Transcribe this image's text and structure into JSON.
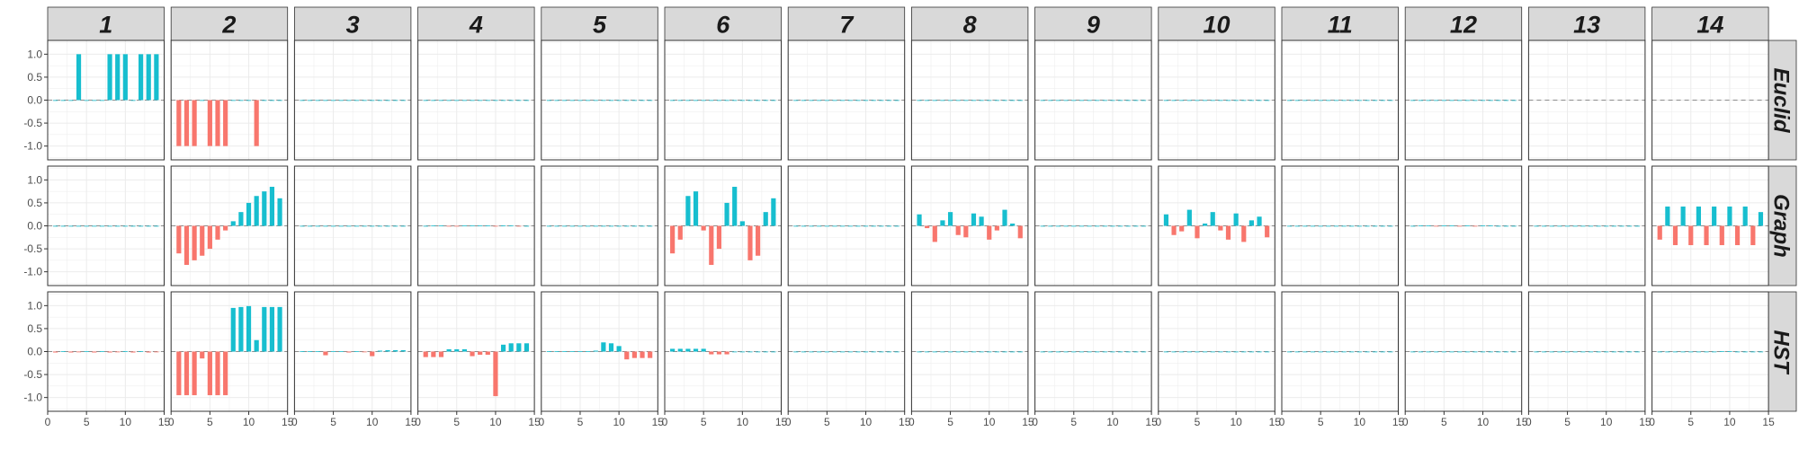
{
  "chart_data": {
    "type": "bar",
    "facet_columns": [
      "1",
      "2",
      "3",
      "4",
      "5",
      "6",
      "7",
      "8",
      "9",
      "10",
      "11",
      "12",
      "13",
      "14"
    ],
    "facet_rows": [
      "Euclid",
      "Graph",
      "HST"
    ],
    "x_ticks": [
      0,
      5,
      10,
      15
    ],
    "y_ticks": [
      -1.0,
      -0.5,
      0.0,
      0.5,
      1.0
    ],
    "x_tick_labels": [
      "0",
      "5",
      "10",
      "15"
    ],
    "y_tick_labels": [
      "-1.0",
      "-0.5",
      "0.0",
      "0.5",
      "1.0"
    ],
    "xlim": [
      0,
      15
    ],
    "ylim": [
      -1.3,
      1.3
    ],
    "grid": true,
    "colors": {
      "positive": "#17BECF",
      "negative": "#F8766D",
      "strip_fill": "#D9D9D9",
      "panel_border": "#333333",
      "grid": "#EBEBEB",
      "zero_line": "#8C8C8C"
    },
    "panels": {
      "Euclid": {
        "1": [
          0,
          0,
          0,
          1,
          0,
          0,
          0,
          1,
          1,
          1,
          0,
          1,
          1,
          1
        ],
        "2": [
          -1,
          -1,
          -1,
          0,
          -1,
          -1,
          -1,
          0,
          0,
          0,
          -1,
          0,
          0,
          0
        ],
        "3": [
          0,
          0,
          0,
          0,
          0,
          0,
          0,
          0,
          0,
          0,
          0,
          0,
          0,
          0
        ],
        "4": [
          0,
          0,
          0,
          0,
          0,
          0,
          0,
          0,
          0,
          0,
          0,
          0,
          0,
          0
        ],
        "5": [
          0,
          0,
          0,
          0,
          0,
          0,
          0,
          0,
          0,
          0,
          0,
          0,
          0,
          0
        ],
        "6": [
          0,
          0,
          0,
          0,
          0,
          0,
          0,
          0,
          0,
          0,
          0,
          0,
          0,
          0
        ],
        "7": [
          0,
          0,
          0,
          0,
          0,
          0,
          0,
          0,
          0,
          0,
          0,
          0,
          0,
          0
        ],
        "8": [
          0,
          0,
          0,
          0,
          0,
          0,
          0,
          0,
          0,
          0,
          0,
          0,
          0,
          0
        ],
        "9": [
          0,
          0,
          0,
          0,
          0,
          0,
          0,
          0,
          0,
          0,
          0,
          0,
          0,
          0
        ],
        "10": [
          0,
          0,
          0,
          0,
          0,
          0,
          0,
          0,
          0,
          0,
          0,
          0,
          0,
          0
        ],
        "11": [
          0,
          0,
          0,
          0,
          0,
          0,
          0,
          0,
          0,
          0,
          0,
          0,
          0,
          0
        ],
        "12": [
          0,
          0,
          0,
          0,
          0,
          0,
          0,
          0,
          0,
          0,
          0,
          0,
          0,
          0
        ],
        "13": [],
        "14": []
      },
      "Graph": {
        "1": [
          0,
          0,
          0,
          0,
          0,
          0,
          0,
          0,
          0,
          0,
          0,
          0,
          0,
          0
        ],
        "2": [
          -0.6,
          -0.85,
          -0.75,
          -0.65,
          -0.5,
          -0.3,
          -0.1,
          0.1,
          0.3,
          0.5,
          0.65,
          0.75,
          0.85,
          0.6
        ],
        "3": [
          0,
          0,
          0,
          0,
          0,
          0,
          0,
          0,
          0,
          0,
          0,
          0,
          0,
          0
        ],
        "4": [
          0,
          0.01,
          0.01,
          -0.01,
          -0.01,
          0.01,
          0.01,
          0.01,
          0.01,
          -0.01,
          0.01,
          0.01,
          -0.01,
          0
        ],
        "5": [
          0,
          0,
          0,
          0,
          0,
          0,
          0,
          0,
          0,
          0,
          0,
          0,
          0,
          0
        ],
        "6": [
          -0.6,
          -0.3,
          0.65,
          0.75,
          -0.1,
          -0.85,
          -0.5,
          0.5,
          0.85,
          0.1,
          -0.75,
          -0.65,
          0.3,
          0.6
        ],
        "7": [
          0,
          0,
          0,
          0,
          0,
          0,
          0,
          0,
          0,
          0,
          0,
          0,
          0,
          0
        ],
        "8": [
          0.25,
          -0.05,
          -0.35,
          0.12,
          0.3,
          -0.2,
          -0.25,
          0.27,
          0.2,
          -0.3,
          -0.1,
          0.35,
          0.05,
          -0.27
        ],
        "9": [
          0,
          0,
          0,
          0,
          0,
          0,
          0,
          0,
          0,
          0,
          0,
          0,
          0,
          0
        ],
        "10": [
          0.25,
          -0.2,
          -0.12,
          0.35,
          -0.27,
          0.05,
          0.3,
          -0.1,
          -0.3,
          0.27,
          -0.35,
          0.12,
          0.2,
          -0.25
        ],
        "11": [
          0,
          0,
          0,
          0,
          0,
          0,
          0,
          0,
          0,
          0,
          0,
          0,
          0,
          0
        ],
        "12": [
          0,
          0.01,
          0.01,
          -0.01,
          0.01,
          0.01,
          -0.01,
          0.01,
          -0.01,
          0.01,
          0.01,
          0,
          0,
          0
        ],
        "13": [
          0,
          0,
          0,
          0,
          0,
          0,
          0,
          0,
          0,
          0,
          0,
          0,
          0,
          0
        ],
        "14": [
          -0.3,
          0.42,
          -0.42,
          0.42,
          -0.42,
          0.42,
          -0.42,
          0.42,
          -0.42,
          0.42,
          -0.42,
          0.42,
          -0.42,
          0.3
        ]
      },
      "HST": {
        "1": [
          -0.02,
          0.01,
          -0.02,
          -0.01,
          0.01,
          -0.02,
          0.01,
          -0.02,
          -0.01,
          0.01,
          -0.02,
          0.01,
          -0.02,
          -0.01
        ],
        "2": [
          -0.95,
          -0.95,
          -0.95,
          -0.15,
          -0.95,
          -0.95,
          -0.95,
          0.95,
          0.97,
          0.99,
          0.25,
          0.97,
          0.97,
          0.97
        ],
        "3": [
          0.01,
          0.01,
          0.01,
          -0.08,
          0.01,
          0.01,
          -0.02,
          0.01,
          -0.01,
          -0.1,
          0.02,
          0.03,
          0.03,
          0.03
        ],
        "4": [
          -0.12,
          -0.12,
          -0.12,
          0.05,
          0.05,
          0.05,
          -0.1,
          -0.07,
          -0.07,
          -0.97,
          0.15,
          0.18,
          0.18,
          0.18
        ],
        "5": [
          0.01,
          0.01,
          0.01,
          0.01,
          0.01,
          0.01,
          0.02,
          0.2,
          0.18,
          0.12,
          -0.17,
          -0.14,
          -0.14,
          -0.14
        ],
        "6": [
          0.06,
          0.06,
          0.06,
          0.06,
          0.06,
          -0.06,
          -0.06,
          -0.06,
          0,
          0,
          0,
          0,
          0,
          0
        ],
        "7": [
          0,
          0,
          0,
          0,
          0,
          0,
          0,
          0,
          0,
          0,
          0,
          0,
          0,
          0
        ],
        "8": [
          0,
          0,
          0,
          0,
          0,
          0,
          0,
          0,
          0,
          0,
          0,
          0,
          0,
          0
        ],
        "9": [
          0,
          0,
          0,
          0,
          0,
          0,
          0,
          0,
          0,
          0,
          0,
          0,
          0,
          0
        ],
        "10": [
          0,
          0,
          0,
          0,
          0,
          0,
          0,
          0,
          0,
          0,
          0,
          0,
          0,
          0
        ],
        "11": [
          0,
          0,
          0,
          0,
          0,
          0,
          0,
          0,
          0,
          0,
          0,
          0,
          0,
          0
        ],
        "12": [
          0,
          0,
          0,
          0,
          0,
          0,
          0,
          0,
          0,
          0,
          0,
          0,
          0,
          0
        ],
        "13": [
          0,
          0,
          0,
          0,
          0,
          0,
          0,
          0,
          0,
          0,
          0,
          0,
          0,
          0
        ],
        "14": [
          0,
          0,
          0,
          0,
          0,
          0,
          0,
          0,
          0.01,
          0.01,
          0,
          0,
          0,
          0
        ]
      }
    }
  }
}
